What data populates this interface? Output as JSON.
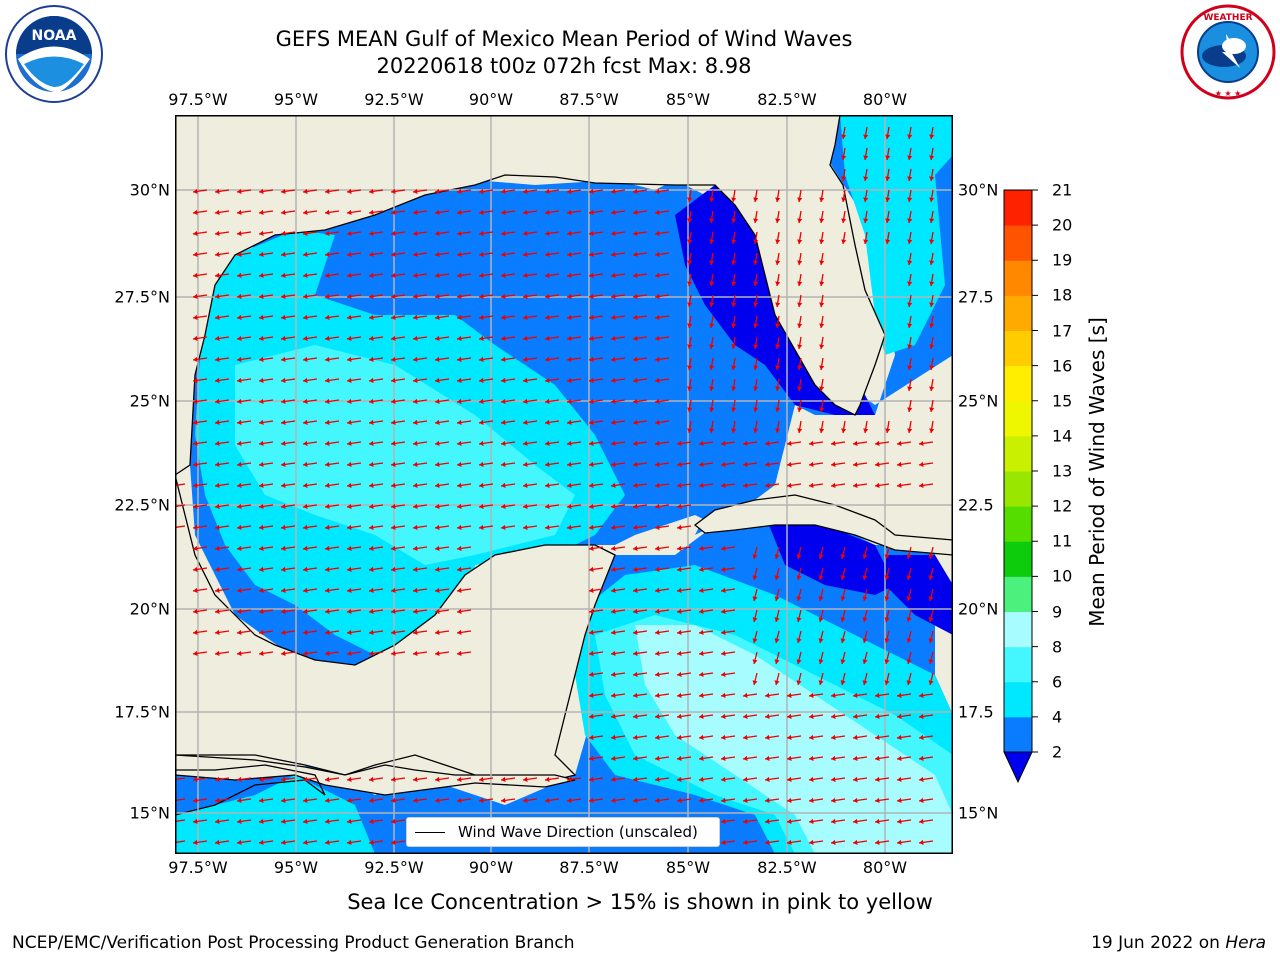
{
  "title": {
    "line1": "GEFS MEAN Gulf of Mexico Mean Period of Wind Waves",
    "line2": "20220618 t00z 072h fcst   Max: 8.98"
  },
  "logos": {
    "left": {
      "icon": "noaa-logo",
      "text": "NOAA"
    },
    "right": {
      "icon": "nws-logo",
      "text": "NATIONAL WEATHER SERVICE"
    }
  },
  "axes": {
    "lon_ticks": [
      "97.5°W",
      "95°W",
      "92.5°W",
      "90°W",
      "87.5°W",
      "85°W",
      "82.5°W",
      "80°W"
    ],
    "lat_ticks_left": [
      "30°N",
      "27.5°N",
      "25°N",
      "22.5°N",
      "20°N",
      "17.5°N",
      "15°N"
    ],
    "lat_ticks_right": [
      "30°N",
      "27.5",
      "25°N",
      "22.5",
      "20°N",
      "17.5",
      "15°N"
    ]
  },
  "colorbar": {
    "label": "Mean Period of Wind Waves [s]",
    "ticks": [
      "2",
      "4",
      "6",
      "8",
      "9",
      "10",
      "11",
      "12",
      "13",
      "14",
      "15",
      "16",
      "17",
      "18",
      "19",
      "20",
      "21"
    ],
    "colors": [
      "#0a7cff",
      "#00e8ff",
      "#44f7ff",
      "#a6fcff",
      "#4cf07c",
      "#0ccc0c",
      "#55dd00",
      "#99e600",
      "#c8f000",
      "#eef600",
      "#ffee00",
      "#ffcc00",
      "#ffaa00",
      "#ff8800",
      "#ff5500",
      "#ff2200"
    ],
    "under_color": "#0000ee"
  },
  "legend": {
    "label": "Wind Wave Direction (unscaled)"
  },
  "note": "Sea Ice Concentration > 15% is shown in pink to yellow",
  "footer": {
    "left": "NCEP/EMC/Verification Post Processing Product Generation Branch",
    "date": "19 Jun 2022 on ",
    "host": "Hera"
  },
  "map_colors": {
    "land": "#efedde",
    "grid": "#b4b4b4",
    "arrow": "#ee0000",
    "coast": "#000000"
  }
}
